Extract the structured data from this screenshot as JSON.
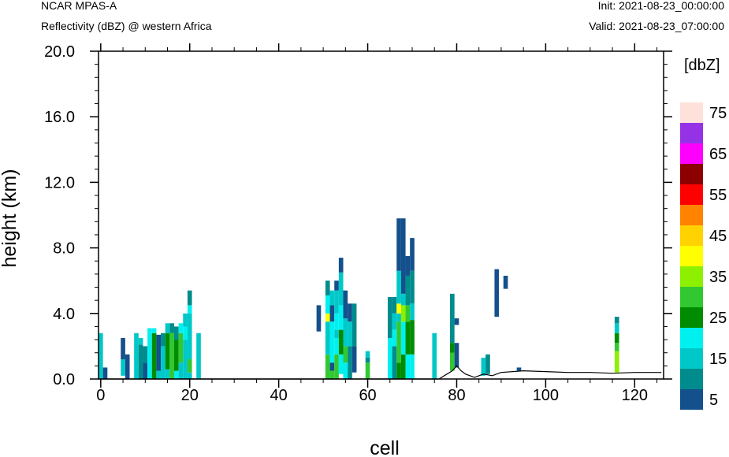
{
  "header": {
    "model": "NCAR MPAS-A",
    "field": "Reflectivity (dBZ) @ western Africa",
    "init": "Init: 2021-08-23_00:00:00",
    "valid": "Valid: 2021-08-23_07:00:00"
  },
  "chart_data": {
    "type": "heatmap",
    "xlabel": "cell",
    "ylabel": "height (km)",
    "xlim": [
      -0.5,
      126.5
    ],
    "ylim": [
      0,
      20
    ],
    "xticks": [
      0,
      20,
      40,
      60,
      80,
      100,
      120
    ],
    "xtick_labels": [
      "0",
      "20",
      "40",
      "60",
      "80",
      "100",
      "120"
    ],
    "yticks": [
      0,
      4,
      8,
      12,
      16,
      20
    ],
    "ytick_labels": [
      "0.0",
      "4.0",
      "8.0",
      "12.0",
      "16.0",
      "20.0"
    ],
    "colorbar": {
      "title": "[dbZ]",
      "levels": [
        5,
        10,
        15,
        20,
        25,
        30,
        35,
        40,
        45,
        50,
        55,
        60,
        65,
        70,
        75
      ],
      "labels": [
        "5",
        "15",
        "25",
        "35",
        "45",
        "55",
        "65",
        "75"
      ],
      "colors": [
        "#14508c",
        "#008c8c",
        "#00c8c8",
        "#00f0f0",
        "#008c00",
        "#32c832",
        "#8cf000",
        "#ffff00",
        "#ffd200",
        "#ff8200",
        "#ff0000",
        "#8c0000",
        "#ff00ff",
        "#9632e6",
        "#ffe1dc"
      ]
    },
    "terrain": [
      [
        76,
        0
      ],
      [
        79,
        0.5
      ],
      [
        80,
        0.8
      ],
      [
        81,
        0.5
      ],
      [
        82,
        0.3
      ],
      [
        84,
        0.1
      ],
      [
        86,
        0.3
      ],
      [
        88,
        0.2
      ],
      [
        90,
        0.4
      ],
      [
        95,
        0.5
      ],
      [
        100,
        0.45
      ],
      [
        105,
        0.4
      ],
      [
        110,
        0.4
      ],
      [
        115,
        0.35
      ],
      [
        120,
        0.4
      ],
      [
        126,
        0.4
      ]
    ],
    "columns": [
      {
        "x": 0,
        "segs": [
          [
            0,
            2.8,
            15
          ]
        ]
      },
      {
        "x": 1,
        "segs": [
          [
            0,
            0.7,
            5
          ]
        ]
      },
      {
        "x": 5,
        "segs": [
          [
            0.2,
            1.2,
            15
          ],
          [
            1.2,
            2.5,
            5
          ]
        ]
      },
      {
        "x": 6,
        "segs": [
          [
            0,
            1.5,
            5
          ]
        ]
      },
      {
        "x": 8,
        "segs": [
          [
            0,
            2.8,
            15
          ]
        ]
      },
      {
        "x": 9,
        "segs": [
          [
            0,
            2.1,
            10
          ],
          [
            2.1,
            2.5,
            15
          ]
        ]
      },
      {
        "x": 10,
        "segs": [
          [
            0,
            1.0,
            5
          ],
          [
            1.0,
            2.0,
            10
          ]
        ]
      },
      {
        "x": 11,
        "segs": [
          [
            0,
            2.8,
            20
          ],
          [
            2.8,
            3.1,
            20
          ]
        ]
      },
      {
        "x": 12,
        "segs": [
          [
            0,
            2.8,
            25
          ],
          [
            2.8,
            3.1,
            20
          ]
        ]
      },
      {
        "x": 13,
        "segs": [
          [
            0,
            0.5,
            15
          ],
          [
            0.5,
            2.7,
            5
          ]
        ]
      },
      {
        "x": 14,
        "segs": [
          [
            0,
            2.0,
            15
          ],
          [
            2.0,
            2.8,
            10
          ]
        ]
      },
      {
        "x": 15,
        "segs": [
          [
            0,
            0.6,
            15
          ],
          [
            0.6,
            2.8,
            25
          ],
          [
            2.8,
            3.4,
            15
          ]
        ]
      },
      {
        "x": 16,
        "segs": [
          [
            0,
            2.8,
            30
          ],
          [
            2.8,
            3.4,
            10
          ]
        ]
      },
      {
        "x": 17,
        "segs": [
          [
            0,
            0.5,
            20
          ],
          [
            0.5,
            2.4,
            25
          ],
          [
            2.4,
            3.2,
            10
          ]
        ]
      },
      {
        "x": 18,
        "segs": [
          [
            0,
            1.0,
            15
          ],
          [
            1.0,
            2.8,
            30
          ],
          [
            2.8,
            3.4,
            20
          ]
        ]
      },
      {
        "x": 19,
        "segs": [
          [
            0,
            2.4,
            15
          ],
          [
            2.4,
            3.2,
            20
          ],
          [
            3.2,
            4.0,
            15
          ]
        ]
      },
      {
        "x": 20,
        "segs": [
          [
            0,
            0.4,
            15
          ],
          [
            0.4,
            1.2,
            30
          ],
          [
            1.2,
            4.0,
            15
          ],
          [
            4.0,
            4.5,
            20
          ],
          [
            4.5,
            5.4,
            10
          ]
        ]
      },
      {
        "x": 22,
        "segs": [
          [
            0,
            2.8,
            15
          ]
        ]
      },
      {
        "x": 49,
        "segs": [
          [
            2.9,
            4.5,
            5
          ]
        ]
      },
      {
        "x": 51,
        "segs": [
          [
            0,
            1.5,
            30
          ],
          [
            1.5,
            3.5,
            15
          ],
          [
            3.5,
            4.0,
            40
          ],
          [
            4.0,
            5.1,
            20
          ],
          [
            5.1,
            6.0,
            10
          ]
        ]
      },
      {
        "x": 52,
        "segs": [
          [
            0,
            0.5,
            30
          ],
          [
            0.5,
            1.0,
            5
          ],
          [
            1.0,
            3.5,
            20
          ],
          [
            3.5,
            4.5,
            5
          ],
          [
            4.5,
            5.4,
            15
          ]
        ]
      },
      {
        "x": 53,
        "segs": [
          [
            0,
            1.5,
            30
          ],
          [
            1.5,
            2.5,
            20
          ],
          [
            2.5,
            3.0,
            15
          ],
          [
            3.0,
            4.0,
            20
          ],
          [
            4.0,
            5.4,
            15
          ],
          [
            5.4,
            6.0,
            5
          ]
        ]
      },
      {
        "x": 54,
        "segs": [
          [
            0.3,
            1.5,
            20
          ],
          [
            1.5,
            3.0,
            25
          ],
          [
            3.0,
            4.5,
            20
          ],
          [
            4.5,
            6.5,
            15
          ],
          [
            6.5,
            7.4,
            5
          ]
        ]
      },
      {
        "x": 55,
        "segs": [
          [
            0,
            1.0,
            20
          ],
          [
            1.0,
            2.0,
            30
          ],
          [
            2.0,
            3.7,
            15
          ],
          [
            3.7,
            5.4,
            5
          ]
        ]
      },
      {
        "x": 56,
        "segs": [
          [
            0,
            2.0,
            10
          ],
          [
            2.0,
            3.5,
            15
          ],
          [
            3.5,
            4.6,
            5
          ]
        ]
      },
      {
        "x": 57,
        "segs": [
          [
            0.4,
            2.0,
            5
          ],
          [
            2.0,
            4.6,
            10
          ]
        ]
      },
      {
        "x": 60,
        "segs": [
          [
            0,
            1.0,
            30
          ],
          [
            1.0,
            1.3,
            10
          ],
          [
            1.3,
            1.7,
            15
          ]
        ]
      },
      {
        "x": 65,
        "segs": [
          [
            0,
            2.5,
            20
          ],
          [
            2.5,
            5.0,
            10
          ]
        ]
      },
      {
        "x": 66,
        "segs": [
          [
            0,
            2.0,
            10
          ],
          [
            2.0,
            3.0,
            20
          ],
          [
            3.0,
            4.0,
            15
          ],
          [
            4.0,
            5.0,
            10
          ]
        ]
      },
      {
        "x": 67,
        "segs": [
          [
            0,
            1.0,
            25
          ],
          [
            1.0,
            3.5,
            30
          ],
          [
            3.5,
            4.0,
            15
          ],
          [
            4.0,
            4.6,
            40
          ],
          [
            4.6,
            6.6,
            15
          ],
          [
            6.6,
            9.8,
            5
          ]
        ]
      },
      {
        "x": 68,
        "segs": [
          [
            0,
            1.5,
            25
          ],
          [
            1.5,
            3.5,
            20
          ],
          [
            3.5,
            4.5,
            35
          ],
          [
            4.5,
            5.2,
            15
          ],
          [
            5.2,
            9.8,
            5
          ]
        ]
      },
      {
        "x": 69,
        "segs": [
          [
            0,
            1.5,
            20
          ],
          [
            1.5,
            3.5,
            25
          ],
          [
            3.5,
            4.5,
            30
          ],
          [
            4.5,
            6.3,
            10
          ],
          [
            6.3,
            7.5,
            5
          ]
        ]
      },
      {
        "x": 70,
        "segs": [
          [
            0,
            1.5,
            20
          ],
          [
            1.5,
            3.6,
            25
          ],
          [
            3.6,
            4.6,
            15
          ],
          [
            4.6,
            6.6,
            10
          ],
          [
            6.6,
            8.6,
            5
          ]
        ]
      },
      {
        "x": 75,
        "segs": [
          [
            0,
            2.8,
            15
          ]
        ]
      },
      {
        "x": 79,
        "segs": [
          [
            0.5,
            1.6,
            30
          ],
          [
            1.6,
            2.2,
            25
          ],
          [
            2.2,
            5.2,
            10
          ]
        ]
      },
      {
        "x": 80,
        "segs": [
          [
            0.7,
            2.2,
            5
          ],
          [
            3.3,
            3.7,
            5
          ]
        ]
      },
      {
        "x": 86,
        "segs": [
          [
            0.2,
            1.3,
            15
          ]
        ]
      },
      {
        "x": 87,
        "segs": [
          [
            0.3,
            1.5,
            10
          ]
        ]
      },
      {
        "x": 89,
        "segs": [
          [
            3.8,
            6.7,
            5
          ]
        ]
      },
      {
        "x": 91,
        "segs": [
          [
            5.5,
            6.3,
            5
          ]
        ]
      },
      {
        "x": 94,
        "segs": [
          [
            0.5,
            0.7,
            5
          ]
        ]
      },
      {
        "x": 116,
        "segs": [
          [
            0.4,
            1.7,
            35
          ],
          [
            1.7,
            2.2,
            30
          ],
          [
            2.2,
            2.8,
            25
          ],
          [
            2.8,
            3.4,
            15
          ],
          [
            3.4,
            3.8,
            10
          ]
        ]
      }
    ]
  }
}
